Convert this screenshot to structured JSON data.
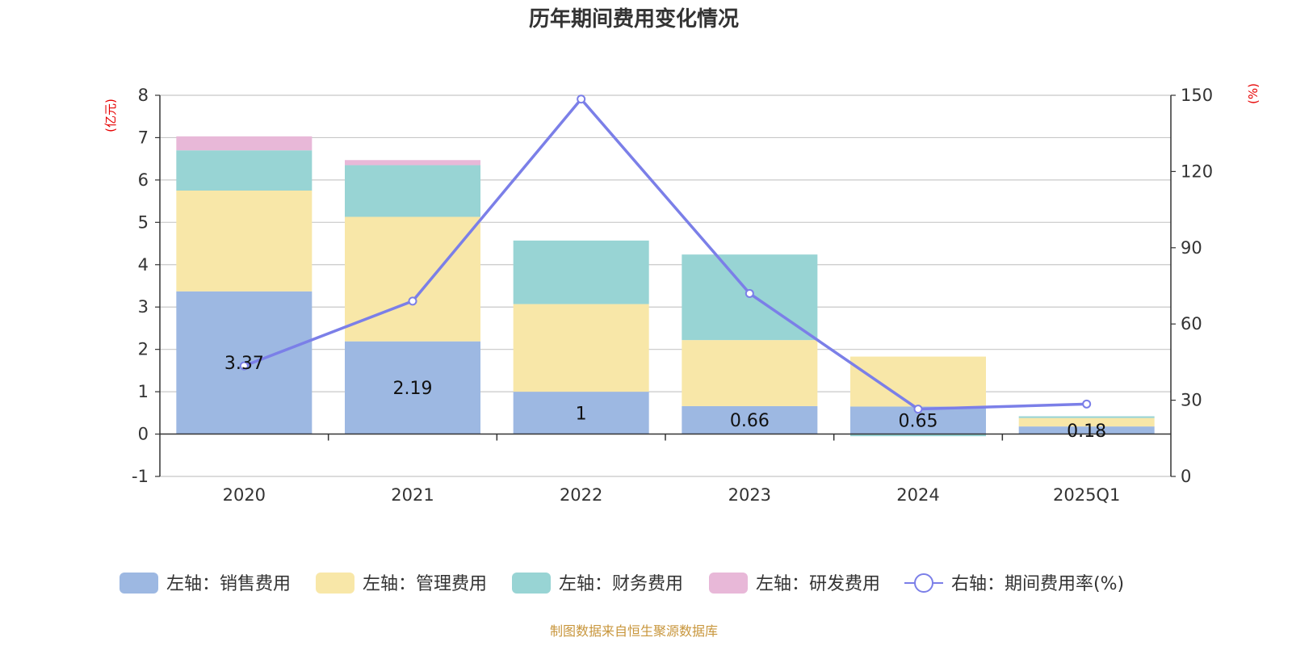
{
  "chart_data": {
    "type": "bar",
    "title": "历年期间费用变化情况",
    "left_unit": "(亿元)",
    "right_unit": "(%)",
    "categories": [
      "2020",
      "2021",
      "2022",
      "2023",
      "2024",
      "2025Q1"
    ],
    "left_axis": {
      "ylim": [
        -1,
        8
      ],
      "ticks": [
        "8",
        "7",
        "6",
        "5",
        "4",
        "3",
        "2",
        "1",
        "0",
        "-1"
      ]
    },
    "right_axis": {
      "ylim": [
        0,
        150
      ],
      "ticks": [
        "150",
        "120",
        "90",
        "60",
        "30",
        "0"
      ]
    },
    "grid": true,
    "legend_position": "bottom",
    "series": [
      {
        "name": "左轴：销售费用",
        "type": "bar",
        "axis": "left",
        "color": "#9db8e2",
        "values": [
          3.37,
          2.19,
          1,
          0.66,
          0.65,
          0.18
        ],
        "labels": [
          "3.37",
          "2.19",
          "1",
          "0.66",
          "0.65",
          "0.18"
        ]
      },
      {
        "name": "左轴：管理费用",
        "type": "bar",
        "axis": "left",
        "color": "#f8e7a8",
        "values": [
          2.38,
          2.94,
          2.07,
          1.56,
          1.18,
          0.2
        ]
      },
      {
        "name": "左轴：财务费用",
        "type": "bar",
        "axis": "left",
        "color": "#98d4d4",
        "values": [
          0.95,
          1.22,
          1.5,
          2.02,
          -0.05,
          0.04
        ]
      },
      {
        "name": "左轴：研发费用",
        "type": "bar",
        "axis": "left",
        "color": "#e8b8d8",
        "values": [
          0.33,
          0.12,
          0,
          0,
          0,
          0
        ]
      },
      {
        "name": "右轴：期间费用率(%)",
        "type": "line",
        "axis": "right",
        "color": "#7b7fe8",
        "values": [
          43.5,
          69,
          148.5,
          72,
          26.5,
          28.5
        ]
      }
    ]
  },
  "footer": {
    "source": "制图数据来自恒生聚源数据库",
    "source_color": "#c8963c"
  }
}
